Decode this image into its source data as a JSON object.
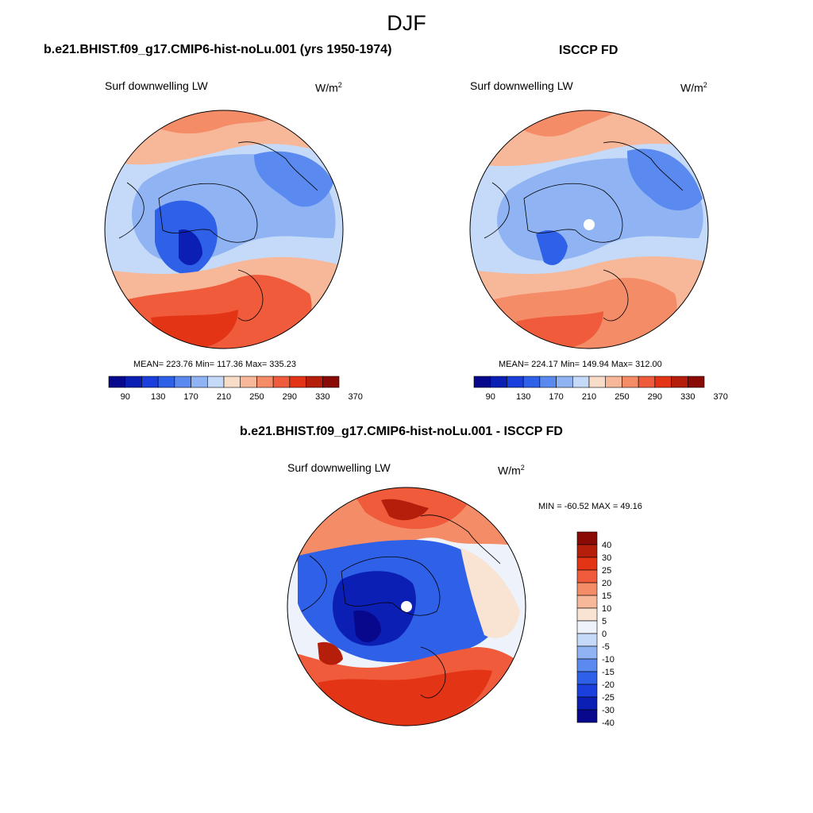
{
  "figure": {
    "season": "DJF"
  },
  "colors": {
    "abs": [
      "#08088c",
      "#0b1fb5",
      "#1a3fdc",
      "#2f60e8",
      "#5a8af0",
      "#8fb3f3",
      "#c4daf8",
      "#f7dcc8",
      "#f7b799",
      "#f48c68",
      "#ef5b3b",
      "#e33416",
      "#b51e0b",
      "#8a0b05"
    ],
    "diff": [
      "#08088c",
      "#0b1fb5",
      "#1a3fdc",
      "#2f60e8",
      "#5a8af0",
      "#8fb3f3",
      "#c4daf8",
      "#eef3fb",
      "#f9e3d3",
      "#f7b799",
      "#f48c68",
      "#ef5b3b",
      "#e33416",
      "#b51e0b",
      "#8a0b05"
    ]
  },
  "chart_data": [
    {
      "type": "heatmap",
      "projection": "north polar stereographic",
      "title": "b.e21.BHIST.f09_g17.CMIP6-hist-noLu.001 (yrs 1950-1974)",
      "variable": "Surf downwelling LW",
      "units_base": "W/m",
      "units_exp": "2",
      "stats_text": "MEAN= 223.76  Min= 117.36  Max= 335.23",
      "mean": 223.76,
      "min": 117.36,
      "max": 335.23,
      "colorbar_levels": [
        90,
        110,
        130,
        150,
        170,
        190,
        210,
        230,
        250,
        270,
        290,
        310,
        330,
        350,
        370
      ],
      "colorbar_labels": [
        "90",
        "130",
        "170",
        "210",
        "250",
        "290",
        "330",
        "370"
      ]
    },
    {
      "type": "heatmap",
      "projection": "north polar stereographic",
      "title": "ISCCP FD",
      "variable": "Surf downwelling LW",
      "units_base": "W/m",
      "units_exp": "2",
      "stats_text": "MEAN= 224.17  Min= 149.94  Max= 312.00",
      "mean": 224.17,
      "min": 149.94,
      "max": 312.0,
      "colorbar_levels": [
        90,
        110,
        130,
        150,
        170,
        190,
        210,
        230,
        250,
        270,
        290,
        310,
        330,
        350,
        370
      ],
      "colorbar_labels": [
        "90",
        "130",
        "170",
        "210",
        "250",
        "290",
        "330",
        "370"
      ]
    },
    {
      "type": "heatmap",
      "projection": "north polar stereographic",
      "title": "b.e21.BHIST.f09_g17.CMIP6-hist-noLu.001 - ISCCP FD",
      "variable": "Surf downwelling LW",
      "units_base": "W/m",
      "units_exp": "2",
      "stats_text": "MIN = -60.52 MAX =  49.16",
      "min": -60.52,
      "max": 49.16,
      "colorbar_levels": [
        -40,
        -30,
        -25,
        -20,
        -15,
        -10,
        -5,
        0,
        5,
        10,
        15,
        20,
        25,
        30,
        40
      ],
      "colorbar_labels": [
        "40",
        "30",
        "25",
        "20",
        "15",
        "10",
        "5",
        "0",
        "-5",
        "-10",
        "-15",
        "-20",
        "-25",
        "-30",
        "-40"
      ]
    }
  ]
}
